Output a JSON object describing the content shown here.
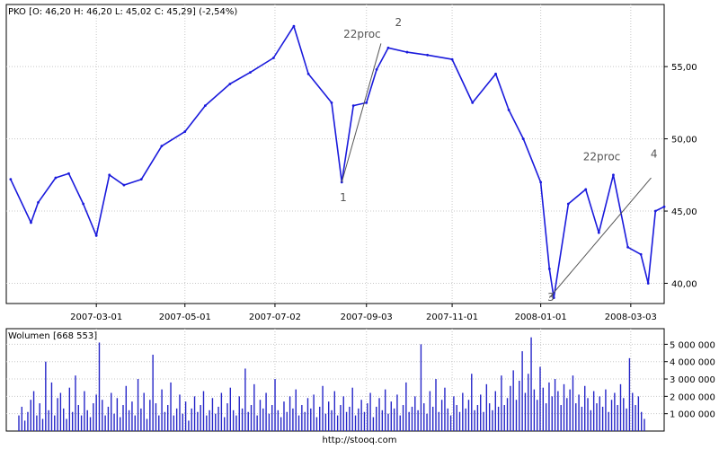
{
  "chart_data": [
    {
      "type": "line",
      "title": "PKO [O: 46,20  H: 46,20  L: 45,02  C: 45,29] (-2,54%)",
      "xlabel": "",
      "ylabel": "",
      "ylim": [
        38.6,
        59.3
      ],
      "y_ticks": [
        "40,00",
        "45,00",
        "50,00",
        "55,00"
      ],
      "y_tick_values": [
        40,
        45,
        50,
        55
      ],
      "x_ticks": [
        "2007-03-01",
        "2007-05-01",
        "2007-07-02",
        "2007-09-03",
        "2007-11-01",
        "2008-01-01",
        "2008-03-03"
      ],
      "x_tick_dates": [
        "2007-03-01",
        "2007-05-01",
        "2007-07-02",
        "2007-09-03",
        "2007-11-01",
        "2008-01-01",
        "2008-03-03"
      ],
      "x_range": [
        "2006-12-29",
        "2008-03-26"
      ],
      "grid": true,
      "series": [
        {
          "x": [
            "2007-01-01",
            "2007-01-15",
            "2007-01-20",
            "2007-02-01",
            "2007-02-10",
            "2007-02-20",
            "2007-03-01",
            "2007-03-10",
            "2007-03-20",
            "2007-04-01",
            "2007-04-15",
            "2007-05-01",
            "2007-05-15",
            "2007-06-01",
            "2007-06-15",
            "2007-07-01",
            "2007-07-15",
            "2007-07-25",
            "2007-08-10",
            "2007-08-17",
            "2007-08-25",
            "2007-09-03",
            "2007-09-10",
            "2007-09-18",
            "2007-10-01",
            "2007-10-15",
            "2007-11-01",
            "2007-11-15",
            "2007-12-01",
            "2007-12-10",
            "2007-12-20",
            "2008-01-01",
            "2008-01-07",
            "2008-01-10",
            "2008-01-20",
            "2008-02-01",
            "2008-02-10",
            "2008-02-20",
            "2008-03-01",
            "2008-03-10",
            "2008-03-15",
            "2008-03-20",
            "2008-03-26"
          ],
          "y": [
            47.2,
            44.2,
            45.6,
            47.3,
            47.6,
            45.5,
            43.3,
            47.5,
            46.8,
            47.2,
            49.5,
            50.5,
            52.3,
            53.8,
            54.6,
            55.6,
            57.8,
            54.5,
            52.5,
            47.0,
            52.3,
            52.5,
            54.8,
            56.3,
            56.0,
            55.8,
            55.5,
            52.5,
            54.5,
            52.0,
            50.0,
            47.0,
            41.0,
            39.0,
            45.5,
            46.5,
            43.5,
            47.5,
            42.5,
            42.0,
            40.0,
            45.0,
            45.3
          ]
        }
      ],
      "annotations": {
        "labels": [
          {
            "text": "1",
            "x": "2007-08-18",
            "y": 45.7
          },
          {
            "text": "22proc",
            "x": "2007-08-31",
            "y": 57.0
          },
          {
            "text": "2",
            "x": "2007-09-25",
            "y": 57.8
          },
          {
            "text": "3",
            "x": "2008-01-08",
            "y": 38.8
          },
          {
            "text": "22proc",
            "x": "2008-02-12",
            "y": 48.5
          },
          {
            "text": "4",
            "x": "2008-03-19",
            "y": 48.7
          }
        ],
        "lines": [
          {
            "from": {
              "x": "2007-08-17",
              "y": 47.0
            },
            "to": {
              "x": "2007-09-13",
              "y": 56.6
            }
          },
          {
            "from": {
              "x": "2008-01-07",
              "y": 39.0
            },
            "to": {
              "x": "2008-03-17",
              "y": 47.3
            }
          }
        ]
      }
    },
    {
      "type": "bar",
      "title": "Wolumen [668 553]",
      "xlabel": "",
      "ylabel": "",
      "ylim": [
        0,
        5900000
      ],
      "y_ticks": [
        "1 000 000",
        "2 000 000",
        "3 000 000",
        "4 000 000",
        "5 000 000"
      ],
      "y_tick_values": [
        1000000,
        2000000,
        3000000,
        4000000,
        5000000
      ],
      "grid": true,
      "series": [
        {
          "values": [
            900000,
            1400000,
            600000,
            1100000,
            1800000,
            2300000,
            900000,
            1600000,
            700000,
            4000000,
            1200000,
            2800000,
            900000,
            1900000,
            2200000,
            1300000,
            700000,
            2500000,
            1100000,
            3200000,
            1500000,
            900000,
            2300000,
            1200000,
            800000,
            1600000,
            2100000,
            5100000,
            1800000,
            900000,
            1400000,
            2200000,
            1000000,
            1900000,
            800000,
            1500000,
            2600000,
            1200000,
            1700000,
            900000,
            3000000,
            1300000,
            2200000,
            700000,
            1800000,
            4400000,
            1600000,
            900000,
            2400000,
            1100000,
            1500000,
            2800000,
            900000,
            1300000,
            2100000,
            1000000,
            1700000,
            600000,
            1300000,
            2000000,
            1100000,
            1500000,
            2300000,
            900000,
            1200000,
            1900000,
            1000000,
            1400000,
            2200000,
            800000,
            1600000,
            2500000,
            1200000,
            900000,
            2000000,
            1300000,
            3600000,
            1100000,
            1500000,
            2700000,
            900000,
            1800000,
            1300000,
            2200000,
            1000000,
            1500000,
            3000000,
            1200000,
            800000,
            1700000,
            1100000,
            2000000,
            1300000,
            2400000,
            900000,
            1500000,
            1100000,
            1900000,
            1300000,
            2100000,
            800000,
            1400000,
            2600000,
            1000000,
            1700000,
            1200000,
            2300000,
            900000,
            1500000,
            2000000,
            1100000,
            1400000,
            2500000,
            900000,
            1300000,
            1800000,
            1100000,
            1600000,
            2200000,
            800000,
            1400000,
            1900000,
            1200000,
            2400000,
            1000000,
            1700000,
            1300000,
            2100000,
            900000,
            1500000,
            2800000,
            1100000,
            1400000,
            2000000,
            1200000,
            5000000,
            1600000,
            1000000,
            2300000,
            1400000,
            3000000,
            1100000,
            1800000,
            2500000,
            1300000,
            900000,
            2000000,
            1500000,
            1100000,
            2200000,
            1300000,
            1800000,
            3300000,
            1200000,
            1500000,
            2100000,
            1100000,
            2700000,
            1600000,
            1200000,
            2300000,
            1400000,
            3200000,
            1500000,
            1900000,
            2600000,
            3500000,
            1800000,
            2900000,
            4600000,
            2200000,
            3300000,
            5400000,
            2400000,
            1800000,
            3700000,
            2500000,
            1600000,
            2800000,
            2000000,
            3000000,
            2300000,
            1500000,
            2700000,
            1900000,
            2400000,
            3200000,
            1600000,
            2100000,
            1400000,
            2600000,
            1900000,
            1200000,
            2300000,
            1600000,
            2000000,
            1400000,
            2400000,
            1100000,
            1800000,
            2200000,
            1500000,
            2700000,
            1900000,
            1300000,
            4200000,
            2200000,
            1500000,
            2000000,
            1100000,
            700000
          ]
        }
      ]
    }
  ],
  "footer": {
    "source_url": "http://stooq.com"
  }
}
